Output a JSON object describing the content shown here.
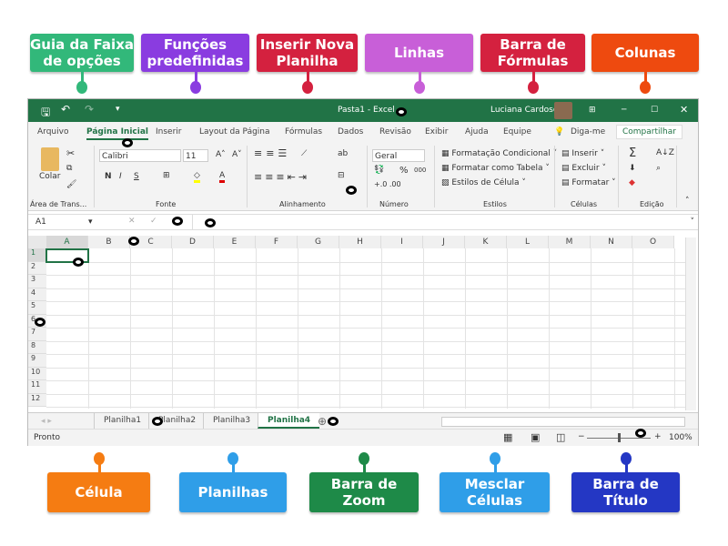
{
  "labels_top": [
    {
      "text": "Guia da Faixa de opções",
      "color": "#32b87a"
    },
    {
      "text": "Funções predefinidas",
      "color": "#8a3ce0"
    },
    {
      "text": "Inserir Nova Planilha",
      "color": "#d4213f"
    },
    {
      "text": "Linhas",
      "color": "#c85fd8"
    },
    {
      "text": "Barra de Fórmulas",
      "color": "#d4213f"
    },
    {
      "text": "Colunas",
      "color": "#ee4a0f"
    }
  ],
  "labels_bottom": [
    {
      "text": "Célula",
      "color": "#f57c12"
    },
    {
      "text": "Planilhas",
      "color": "#2f9ee8"
    },
    {
      "text": "Barra de Zoom",
      "color": "#1e8a48"
    },
    {
      "text": "Mesclar Células",
      "color": "#2f9ee8"
    },
    {
      "text": "Barra de Título",
      "color": "#2437c4"
    }
  ],
  "excel": {
    "accent": "#217346",
    "title": "Pasta1 - Excel",
    "user": "Luciana Cardoso",
    "tabs": [
      "Arquivo",
      "Página Inicial",
      "Inserir",
      "Layout da Página",
      "Fórmulas",
      "Dados",
      "Revisão",
      "Exibir",
      "Ajuda",
      "Equipe"
    ],
    "tell_me": "Diga-me",
    "share": "Compartilhar",
    "ribbon": {
      "paste": "Colar",
      "font": "Calibri",
      "size": "11",
      "bold": "N",
      "italic": "I",
      "underline": "S",
      "number_format": "Geral",
      "percent": "%",
      "thousands": "000",
      "cond_format": "Formatação Condicional",
      "format_table": "Formatar como Tabela",
      "cell_styles": "Estilos de Célula",
      "insert": "Inserir",
      "delete": "Excluir",
      "format": "Formatar",
      "groups": [
        "Área de Trans...",
        "Fonte",
        "Alinhamento",
        "Número",
        "Estilos",
        "Células",
        "Edição"
      ]
    },
    "name_box": "A1",
    "columns": [
      "A",
      "B",
      "C",
      "D",
      "E",
      "F",
      "G",
      "H",
      "I",
      "J",
      "K",
      "L",
      "M",
      "N",
      "O"
    ],
    "rows": [
      "1",
      "2",
      "3",
      "4",
      "5",
      "6",
      "7",
      "8",
      "9",
      "10",
      "11",
      "12"
    ],
    "sheets": [
      "Planilha1",
      "Planilha2",
      "Planilha3",
      "Planilha4"
    ],
    "active_sheet": "Planilha4",
    "status": "Pronto",
    "zoom": "100%"
  }
}
